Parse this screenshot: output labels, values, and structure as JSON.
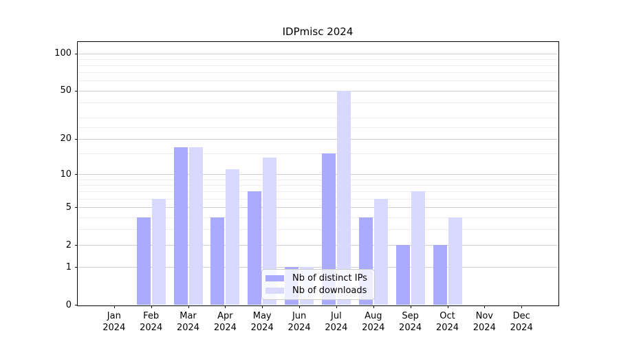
{
  "title": "IDPmisc 2024",
  "legend": {
    "items": [
      {
        "label": "Nb of distinct IPs",
        "color": "#aaaaff"
      },
      {
        "label": "Nb of downloads",
        "color": "#d9d9ff"
      }
    ]
  },
  "chart_data": {
    "type": "bar",
    "title": "IDPmisc 2024",
    "scale": "log1p",
    "categories": [
      "Jan",
      "Feb",
      "Mar",
      "Apr",
      "May",
      "Jun",
      "Jul",
      "Aug",
      "Sep",
      "Oct",
      "Nov",
      "Dec"
    ],
    "year_label": "2024",
    "series": [
      {
        "name": "Nb of distinct IPs",
        "slug": "distinct-ips",
        "color": "#aaaaff",
        "values": [
          0,
          4,
          17,
          4,
          7,
          1,
          15,
          4,
          2,
          2,
          0,
          0
        ]
      },
      {
        "name": "Nb of downloads",
        "slug": "downloads",
        "color": "#d9d9ff",
        "values": [
          0,
          6,
          17,
          11,
          14,
          1,
          50,
          6,
          7,
          4,
          0,
          0
        ]
      }
    ],
    "yticks_major": [
      0,
      1,
      2,
      5,
      10,
      20,
      50,
      100
    ],
    "yticks_minor": [
      3,
      4,
      6,
      7,
      8,
      9,
      15,
      25,
      30,
      40,
      60,
      70,
      80,
      90
    ],
    "ylim": [
      0,
      125
    ],
    "xlabel": "",
    "ylabel": "",
    "grid": true,
    "legend_position": "lower center"
  },
  "colors": {
    "grid_major": "#cfcfcf",
    "grid_minor": "#ebebeb",
    "axis": "#000000",
    "background": "#ffffff"
  }
}
